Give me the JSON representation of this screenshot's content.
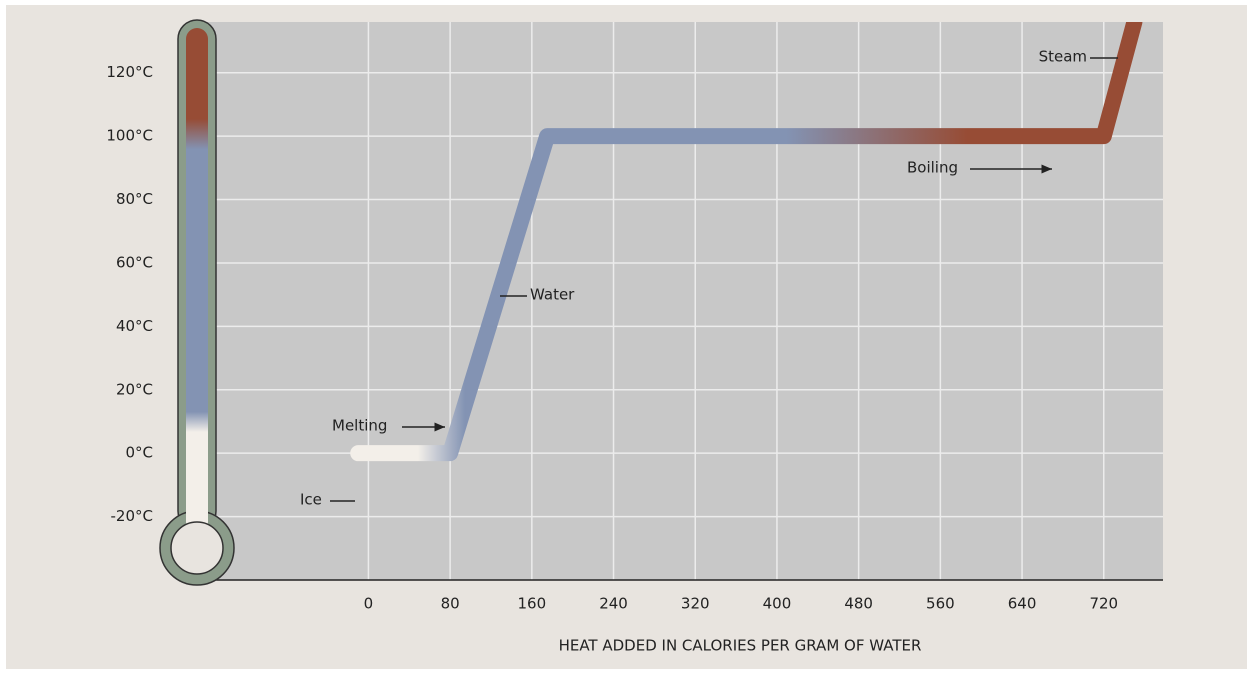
{
  "chart_data": {
    "type": "line",
    "x_label": "HEAT ADDED IN CALORIES PER GRAM OF WATER",
    "x": [
      -10,
      80,
      175,
      720,
      750
    ],
    "values": [
      0,
      0,
      100,
      100,
      136
    ],
    "xlim": [
      -160,
      778
    ],
    "ylim": [
      -40,
      136
    ],
    "xticks": [
      0,
      80,
      160,
      240,
      320,
      400,
      480,
      560,
      640,
      720
    ],
    "yticks": [
      {
        "value": -20,
        "label": "-20°C"
      },
      {
        "value": 0,
        "label": "0°C"
      },
      {
        "value": 20,
        "label": "20°C"
      },
      {
        "value": 40,
        "label": "40°C"
      },
      {
        "value": 60,
        "label": "60°C"
      },
      {
        "value": 80,
        "label": "80°C"
      },
      {
        "value": 100,
        "label": "100°C"
      },
      {
        "value": 120,
        "label": "120°C"
      }
    ],
    "grid": true,
    "colors": {
      "ice": "#f3efe9",
      "water": "#8393b3",
      "steam": "#974c35"
    },
    "annotations": [
      "Steam",
      "Boiling",
      "Water",
      "Melting",
      "Ice"
    ]
  }
}
